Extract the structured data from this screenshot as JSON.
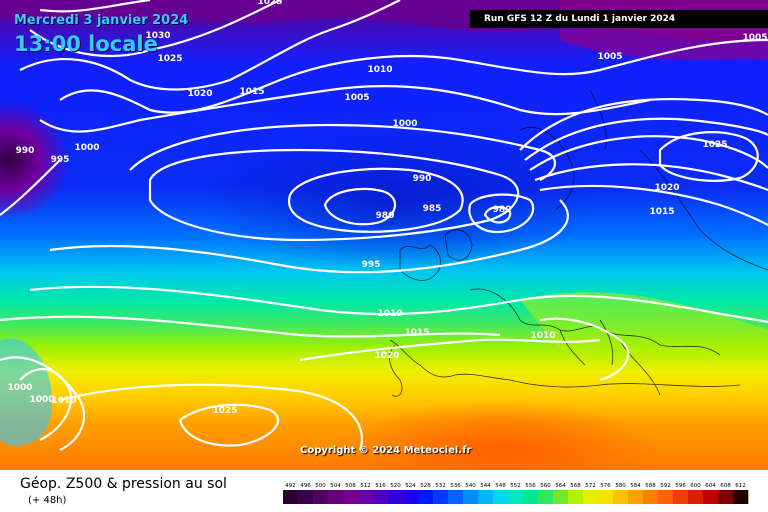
{
  "header": {
    "date": "Mercredi 3 janvier 2024",
    "time": "13:00 locale",
    "run": "Run GFS 12 Z du Lundi 1 janvier 2024"
  },
  "copyright": "Copyright © 2024 Meteociel.fr",
  "footer": {
    "title": "Géop. Z500 & pression au sol",
    "subtitle": "(+ 48h)"
  },
  "isobar_labels": [
    "1025",
    "1030",
    "1025",
    "1020",
    "1015",
    "1010",
    "1005",
    "1000",
    "990",
    "995",
    "1000",
    "990",
    "980",
    "985",
    "980",
    "995",
    "1010",
    "1015",
    "1010",
    "1020",
    "1000",
    "1000",
    "1010",
    "1025",
    "1005",
    "1005",
    "1025",
    "1020",
    "1015"
  ],
  "scale": {
    "values": [
      "492",
      "496",
      "500",
      "504",
      "508",
      "512",
      "516",
      "520",
      "524",
      "528",
      "532",
      "536",
      "540",
      "544",
      "548",
      "552",
      "556",
      "560",
      "564",
      "568",
      "572",
      "576",
      "580",
      "584",
      "588",
      "592",
      "596",
      "600",
      "604",
      "608",
      "612"
    ],
    "colors": [
      "#2a0030",
      "#3c004a",
      "#520062",
      "#68007a",
      "#780090",
      "#6a00a8",
      "#5000c0",
      "#3400d8",
      "#1c00f0",
      "#0018ff",
      "#003cff",
      "#0064ff",
      "#008cff",
      "#00b4ff",
      "#00d8f0",
      "#00e8c0",
      "#00e890",
      "#30e860",
      "#70e830",
      "#b0f000",
      "#e0f000",
      "#f8e000",
      "#ffc000",
      "#ffa000",
      "#ff8000",
      "#ff6000",
      "#f04000",
      "#d82000",
      "#c00000",
      "#800000",
      "#200000"
    ]
  }
}
